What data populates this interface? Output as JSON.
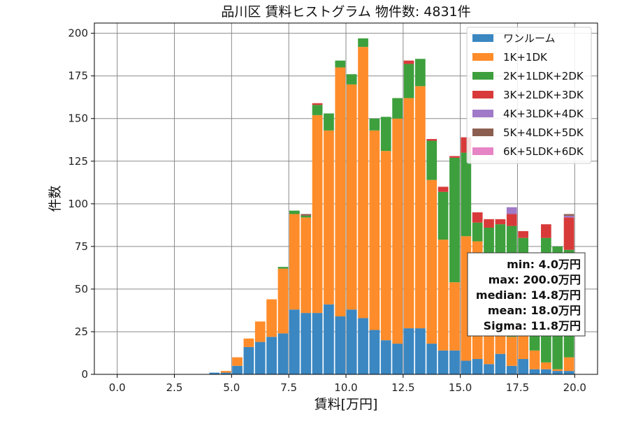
{
  "chart_data": {
    "type": "bar",
    "stacked": true,
    "title": "品川区 賃料ヒストグラム 物件数: 4831件",
    "xlabel": "賃料[万円]",
    "ylabel": "件数",
    "xlim": [
      -1,
      21
    ],
    "ylim": [
      0,
      206
    ],
    "xticks": [
      0,
      2.5,
      5,
      7.5,
      10,
      12.5,
      15,
      17.5,
      20
    ],
    "xtick_labels": [
      "0.0",
      "2.5",
      "5.0",
      "7.5",
      "10.0",
      "12.5",
      "15.0",
      "17.5",
      "20.0"
    ],
    "yticks": [
      0,
      25,
      50,
      75,
      100,
      125,
      150,
      175,
      200
    ],
    "ytick_labels": [
      "0",
      "25",
      "50",
      "75",
      "100",
      "125",
      "150",
      "175",
      "200"
    ],
    "grid": true,
    "legend_position": "top-right",
    "bin_width": 0.5,
    "bin_starts": [
      0.0,
      0.5,
      1.0,
      1.5,
      2.0,
      2.5,
      3.0,
      3.5,
      4.0,
      4.5,
      5.0,
      5.5,
      6.0,
      6.5,
      7.0,
      7.5,
      8.0,
      8.5,
      9.0,
      9.5,
      10.0,
      10.5,
      11.0,
      11.5,
      12.0,
      12.5,
      13.0,
      13.5,
      14.0,
      14.5,
      15.0,
      15.5,
      16.0,
      16.5,
      17.0,
      17.5,
      18.0,
      18.5,
      19.0,
      19.5
    ],
    "series": [
      {
        "name": "ワンルーム",
        "color": "#3a87c2",
        "values": [
          0,
          0,
          0,
          0,
          0,
          0,
          0,
          0,
          1,
          1,
          5,
          16,
          19,
          22,
          24,
          38,
          36,
          36,
          41,
          34,
          38,
          33,
          26,
          20,
          18,
          27,
          27,
          18,
          14,
          14,
          8,
          9,
          6,
          12,
          5,
          9,
          3,
          3,
          2,
          2
        ]
      },
      {
        "name": "1K+1DK",
        "color": "#ff8c2a",
        "values": [
          0,
          0,
          0,
          0,
          0,
          0,
          0,
          0,
          0,
          1,
          5,
          5,
          12,
          22,
          38,
          56,
          56,
          116,
          102,
          146,
          132,
          159,
          117,
          111,
          132,
          135,
          142,
          96,
          65,
          40,
          73,
          69,
          47,
          42,
          17,
          55,
          11,
          4,
          1,
          8
        ]
      },
      {
        "name": "2K+1LDK+2DK",
        "color": "#3da03d",
        "values": [
          0,
          0,
          0,
          0,
          0,
          0,
          0,
          0,
          0,
          0,
          0,
          0,
          0,
          0,
          1,
          2,
          1,
          6,
          10,
          4,
          6,
          5,
          7,
          20,
          12,
          20,
          16,
          23,
          28,
          73,
          49,
          11,
          33,
          34,
          65,
          16,
          38,
          73,
          72,
          63
        ]
      },
      {
        "name": "3K+2LDK+3DK",
        "color": "#d83a3a",
        "values": [
          0,
          0,
          0,
          0,
          0,
          0,
          0,
          0,
          0,
          0,
          0,
          0,
          0,
          0,
          0,
          0,
          0,
          1,
          0,
          0,
          0,
          0,
          0,
          0,
          0,
          2,
          0,
          1,
          3,
          1,
          9,
          6,
          5,
          3,
          7,
          4,
          12,
          8,
          0,
          19
        ]
      },
      {
        "name": "4K+3LDK+4DK",
        "color": "#a07ac8",
        "values": [
          0,
          0,
          0,
          0,
          0,
          0,
          0,
          0,
          0,
          0,
          0,
          0,
          0,
          0,
          0,
          0,
          0,
          0,
          0,
          0,
          0,
          0,
          0,
          0,
          0,
          0,
          0,
          0,
          0,
          0,
          0,
          0,
          0,
          0,
          4,
          0,
          0,
          0,
          0,
          1
        ]
      },
      {
        "name": "5K+4LDK+5DK",
        "color": "#8c5e4f",
        "values": [
          0,
          0,
          0,
          0,
          0,
          0,
          0,
          0,
          0,
          0,
          0,
          0,
          0,
          0,
          0,
          0,
          1,
          0,
          0,
          0,
          0,
          0,
          0,
          0,
          0,
          0,
          0,
          0,
          0,
          0,
          0,
          0,
          0,
          0,
          0,
          0,
          0,
          0,
          0,
          1
        ]
      },
      {
        "name": "6K+5LDK+6DK",
        "color": "#e684c6",
        "values": [
          0,
          0,
          0,
          0,
          0,
          0,
          0,
          0,
          0,
          0,
          0,
          0,
          0,
          0,
          0,
          0,
          0,
          0,
          0,
          0,
          0,
          0,
          0,
          0,
          0,
          0,
          0,
          0,
          0,
          0,
          0,
          0,
          0,
          0,
          0,
          0,
          0,
          0,
          0,
          0
        ]
      }
    ],
    "stats_box": [
      "min: 4.0万円",
      "max: 200.0万円",
      "median: 14.8万円",
      "mean: 18.0万円",
      "Sigma: 11.8万円"
    ]
  }
}
